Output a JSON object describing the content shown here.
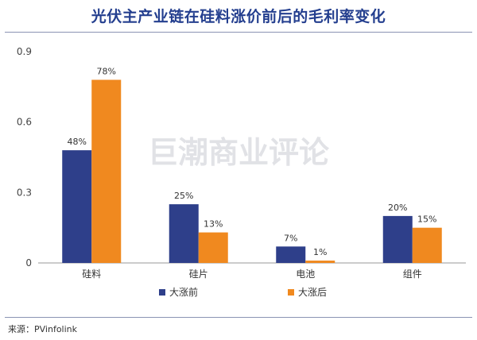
{
  "title": "光伏主产业链在硅料涨价前后的毛利率变化",
  "source": "来源：PVinfolink",
  "watermark": "巨潮商业评论",
  "colors": {
    "before": "#2e3f8a",
    "after": "#f0891f",
    "title": "#243f8f"
  },
  "chart_data": {
    "type": "bar",
    "categories": [
      "硅料",
      "硅片",
      "电池",
      "组件"
    ],
    "series": [
      {
        "name": "大涨前",
        "values": [
          0.48,
          0.25,
          0.07,
          0.2
        ],
        "labels": [
          "48%",
          "25%",
          "7%",
          "20%"
        ]
      },
      {
        "name": "大涨后",
        "values": [
          0.78,
          0.13,
          0.01,
          0.15
        ],
        "labels": [
          "78%",
          "13%",
          "1%",
          "15%"
        ]
      }
    ],
    "yticks": [
      "0",
      "0.3",
      "0.6",
      "0.9"
    ],
    "ylim": [
      0,
      0.9
    ],
    "legend": "bottom"
  }
}
